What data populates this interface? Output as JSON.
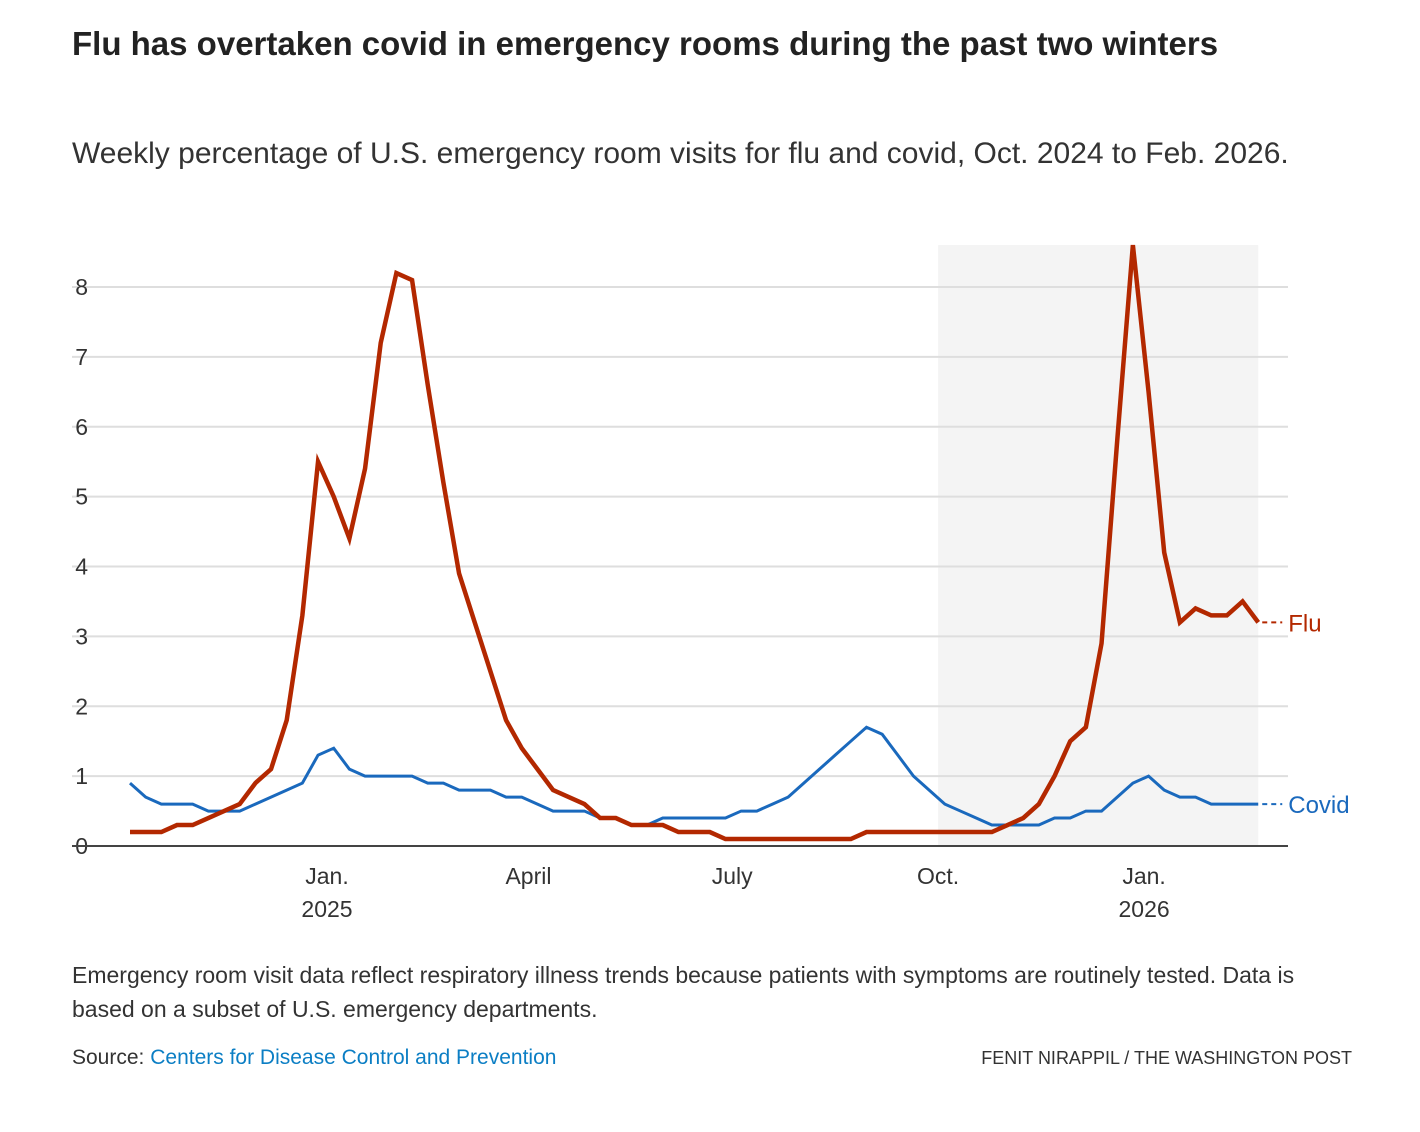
{
  "title": "Flu has overtaken covid in emergency rooms during the past two winters",
  "subtitle": "Weekly percentage of U.S. emergency room visits for flu and covid, Oct. 2024 to Feb. 2026.",
  "note": "Emergency room visit data reflect respiratory illness trends because patients with symptoms are routinely tested. Data is based on a subset of U.S. emergency departments.",
  "source": {
    "label": "Source:",
    "link_text": "Centers for Disease Control and Prevention"
  },
  "credit": "Fenit Nirappil / The Washington Post",
  "chart_data": {
    "type": "line",
    "title": "",
    "xlabel": "",
    "ylabel": "",
    "ylim": [
      0,
      8.6
    ],
    "yticks": [
      0,
      1,
      2,
      3,
      4,
      5,
      6,
      7,
      8
    ],
    "grid": true,
    "x_start": "2024-10-05",
    "x_interval": "weekly",
    "xticks": [
      {
        "date": "2025-01-01",
        "label": "Jan.",
        "sublabel": "2025"
      },
      {
        "date": "2025-04-01",
        "label": "April",
        "sublabel": ""
      },
      {
        "date": "2025-07-01",
        "label": "July",
        "sublabel": ""
      },
      {
        "date": "2025-10-01",
        "label": "Oct.",
        "sublabel": ""
      },
      {
        "date": "2026-01-01",
        "label": "Jan.",
        "sublabel": "2026"
      }
    ],
    "highlight_range": [
      "2025-10-01",
      "2026-02-21"
    ],
    "series": [
      {
        "name": "Flu",
        "color": "#b32800",
        "values": [
          0.2,
          0.2,
          0.2,
          0.3,
          0.3,
          0.4,
          0.5,
          0.6,
          0.9,
          1.1,
          1.8,
          3.3,
          5.5,
          5.0,
          4.4,
          5.4,
          7.2,
          8.2,
          8.1,
          6.6,
          5.2,
          3.9,
          3.2,
          2.5,
          1.8,
          1.4,
          1.1,
          0.8,
          0.7,
          0.6,
          0.4,
          0.4,
          0.3,
          0.3,
          0.3,
          0.2,
          0.2,
          0.2,
          0.1,
          0.1,
          0.1,
          0.1,
          0.1,
          0.1,
          0.1,
          0.1,
          0.1,
          0.2,
          0.2,
          0.2,
          0.2,
          0.2,
          0.2,
          0.2,
          0.2,
          0.2,
          0.3,
          0.4,
          0.6,
          1.0,
          1.5,
          1.7,
          2.9,
          5.8,
          8.6,
          6.5,
          4.2,
          3.2,
          3.4,
          3.3,
          3.3,
          3.5,
          3.2
        ]
      },
      {
        "name": "Covid",
        "color": "#1a69bd",
        "values": [
          0.9,
          0.7,
          0.6,
          0.6,
          0.6,
          0.5,
          0.5,
          0.5,
          0.6,
          0.7,
          0.8,
          0.9,
          1.3,
          1.4,
          1.1,
          1.0,
          1.0,
          1.0,
          1.0,
          0.9,
          0.9,
          0.8,
          0.8,
          0.8,
          0.7,
          0.7,
          0.6,
          0.5,
          0.5,
          0.5,
          0.4,
          0.4,
          0.3,
          0.3,
          0.4,
          0.4,
          0.4,
          0.4,
          0.4,
          0.5,
          0.5,
          0.6,
          0.7,
          0.9,
          1.1,
          1.3,
          1.5,
          1.7,
          1.6,
          1.3,
          1.0,
          0.8,
          0.6,
          0.5,
          0.4,
          0.3,
          0.3,
          0.3,
          0.3,
          0.4,
          0.4,
          0.5,
          0.5,
          0.7,
          0.9,
          1.0,
          0.8,
          0.7,
          0.7,
          0.6,
          0.6,
          0.6,
          0.6
        ]
      }
    ]
  }
}
